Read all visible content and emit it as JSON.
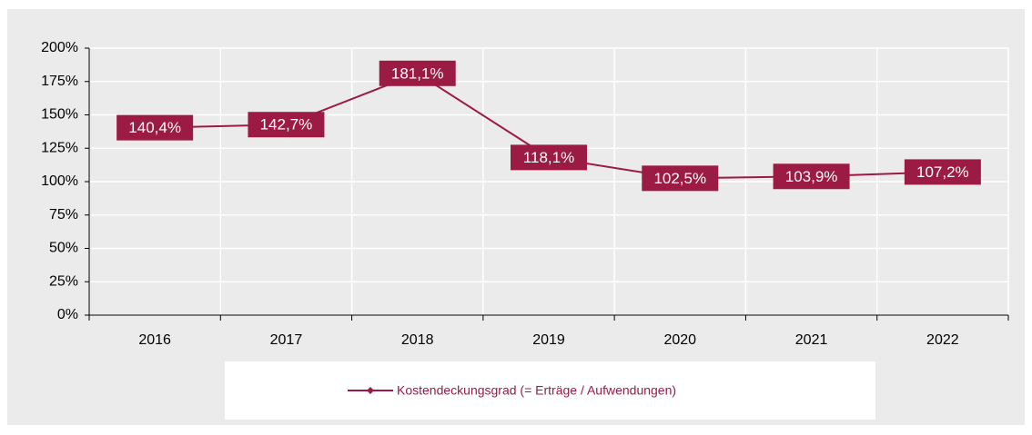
{
  "chart_data": {
    "type": "line",
    "categories": [
      "2016",
      "2017",
      "2018",
      "2019",
      "2020",
      "2021",
      "2022"
    ],
    "series": [
      {
        "name": "Kostendeckungsgrad (= Erträge / Aufwendungen)",
        "color": "#9b1b45",
        "values": [
          140.4,
          142.7,
          181.1,
          118.1,
          102.5,
          103.9,
          107.2
        ],
        "value_labels": [
          "140,4%",
          "142,7%",
          "181,1%",
          "118,1%",
          "102,5%",
          "103,9%",
          "107,2%"
        ]
      }
    ],
    "ylim": [
      0,
      200
    ],
    "yticks": [
      {
        "value": 0,
        "label": "0%"
      },
      {
        "value": 25,
        "label": "25%"
      },
      {
        "value": 50,
        "label": "50%"
      },
      {
        "value": 75,
        "label": "75%"
      },
      {
        "value": 100,
        "label": "100%"
      },
      {
        "value": 125,
        "label": "125%"
      },
      {
        "value": 150,
        "label": "150%"
      },
      {
        "value": 175,
        "label": "175%"
      },
      {
        "value": 200,
        "label": "200%"
      }
    ],
    "grid": true,
    "legend": "bottom"
  }
}
